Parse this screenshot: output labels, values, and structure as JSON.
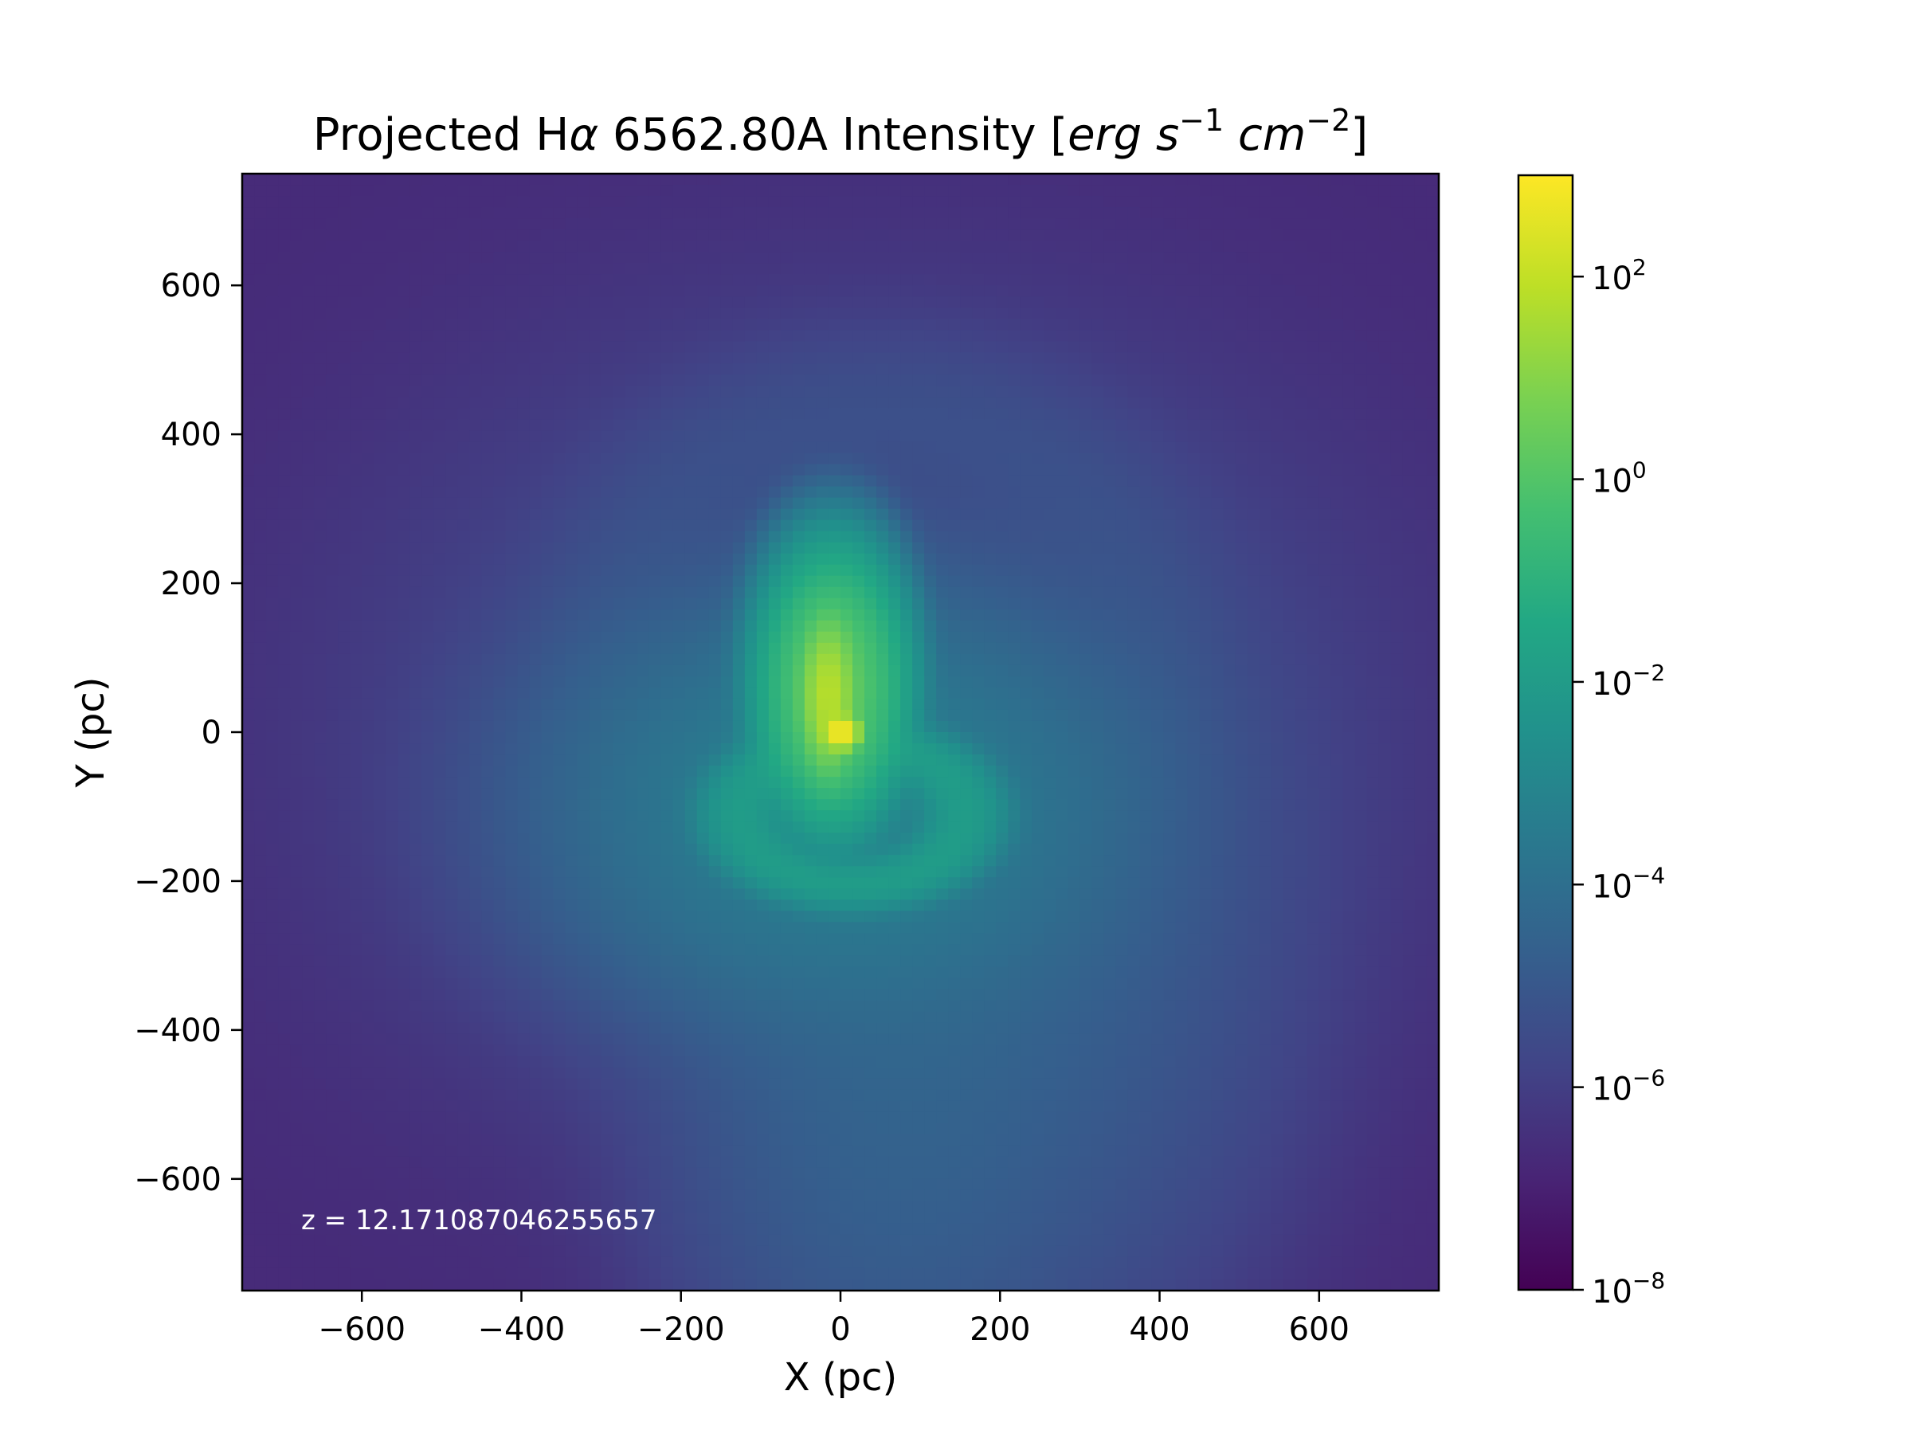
{
  "chart_data": {
    "type": "heatmap",
    "title": "Projected Hα 6562.80A Intensity [erg s⁻¹ cm⁻²]",
    "title_parts": {
      "main": "Projected H",
      "alpha": "α",
      "line": " 6562.80A Intensity [",
      "erg": "erg",
      "s": " s",
      "s_exp": "−1",
      "cm": " cm",
      "cm_exp": "−2",
      "close": "]"
    },
    "xlabel": "X (pc)",
    "ylabel": "Y (pc)",
    "xlim": [
      -750,
      750
    ],
    "ylim": [
      -750,
      750
    ],
    "xticks": [
      -600,
      -400,
      -200,
      0,
      200,
      400,
      600
    ],
    "yticks": [
      -600,
      -400,
      -200,
      0,
      200,
      400,
      600
    ],
    "xtick_labels": [
      "−600",
      "−400",
      "−200",
      "0",
      "200",
      "400",
      "600"
    ],
    "ytick_labels": [
      "−600",
      "−400",
      "−200",
      "0",
      "200",
      "400",
      "600"
    ],
    "annotation": "z = 12.171087046255657",
    "colormap": "viridis",
    "colorbar": {
      "scale": "log",
      "range_log10": [
        -8,
        3
      ],
      "ticks_log10": [
        -8,
        -6,
        -4,
        -2,
        0,
        2
      ],
      "tick_base": "10",
      "tick_exponents": [
        "−8",
        "−6",
        "−4",
        "−2",
        "0",
        "2"
      ]
    },
    "features_log10": {
      "background": -6.7,
      "bright_source": {
        "x": 0,
        "y": 0,
        "value": 3.0
      },
      "clump": {
        "x": -15,
        "y": 50,
        "value": 1.8
      },
      "ring": {
        "x": 15,
        "y": -110,
        "value": -2.0
      },
      "shell": {
        "x": 50,
        "y": 100,
        "value": -5.5
      },
      "plume": {
        "x": 60,
        "y": -450,
        "value": -4.6
      }
    }
  }
}
